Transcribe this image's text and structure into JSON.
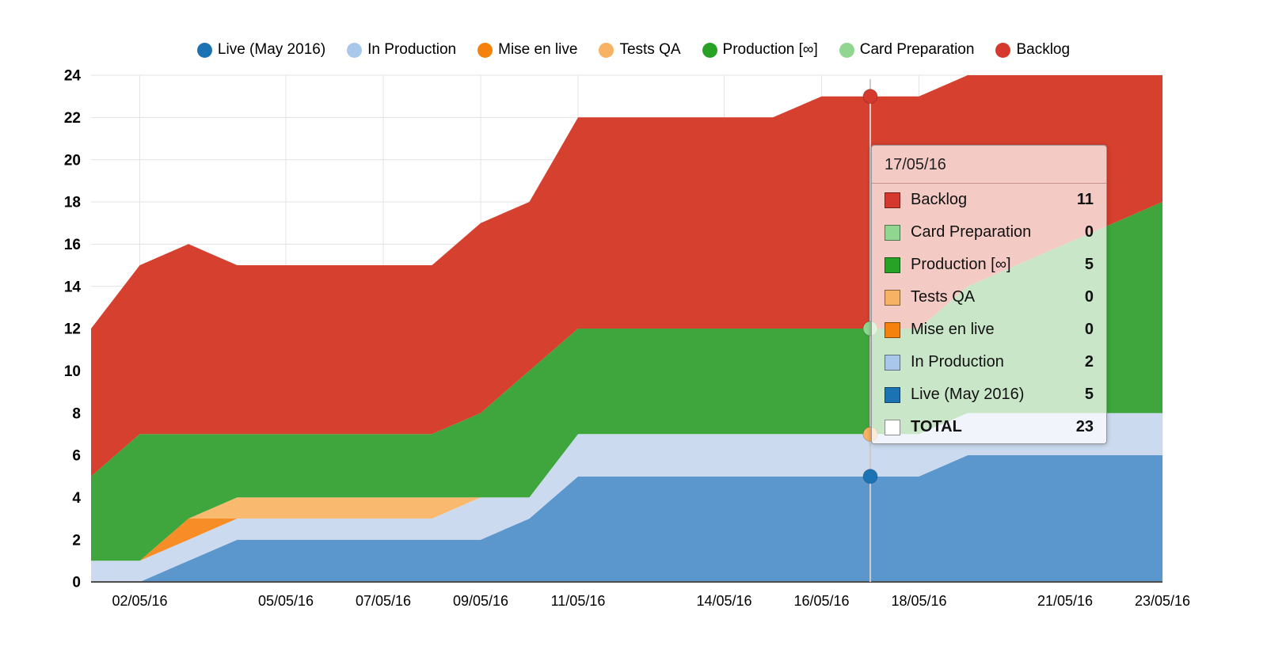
{
  "chart_data": {
    "type": "area",
    "stacked": true,
    "title": "",
    "xlabel": "",
    "ylabel": "",
    "ylim": [
      0,
      24
    ],
    "y_ticks": [
      0,
      2,
      4,
      6,
      8,
      10,
      12,
      14,
      16,
      18,
      20,
      22,
      24
    ],
    "grid": true,
    "legend_position": "top",
    "x": [
      "01/05/16",
      "02/05/16",
      "03/05/16",
      "04/05/16",
      "05/05/16",
      "06/05/16",
      "07/05/16",
      "08/05/16",
      "09/05/16",
      "10/05/16",
      "11/05/16",
      "12/05/16",
      "13/05/16",
      "14/05/16",
      "15/05/16",
      "16/05/16",
      "17/05/16",
      "18/05/16",
      "19/05/16",
      "20/05/16",
      "21/05/16",
      "22/05/16",
      "23/05/16"
    ],
    "x_tick_labels": [
      "02/05/16",
      "05/05/16",
      "07/05/16",
      "09/05/16",
      "11/05/16",
      "14/05/16",
      "16/05/16",
      "18/05/16",
      "21/05/16",
      "23/05/16"
    ],
    "series": [
      {
        "name": "Live (May 2016)",
        "color": "#1b73b3",
        "area_color": "#5b97cd",
        "values": [
          0,
          0,
          1,
          2,
          2,
          2,
          2,
          2,
          2,
          3,
          5,
          5,
          5,
          5,
          5,
          5,
          5,
          5,
          6,
          6,
          6,
          6,
          6
        ]
      },
      {
        "name": "In Production",
        "color": "#a9c7e9",
        "area_color": "#ccdaf0",
        "values": [
          1,
          1,
          1,
          1,
          1,
          1,
          1,
          1,
          2,
          1,
          2,
          2,
          2,
          2,
          2,
          2,
          2,
          2,
          2,
          2,
          2,
          2,
          2
        ]
      },
      {
        "name": "Mise en live",
        "color": "#f5820d",
        "area_color": "#f68d26",
        "values": [
          0,
          0,
          1,
          0,
          0,
          0,
          0,
          0,
          0,
          0,
          0,
          0,
          0,
          0,
          0,
          0,
          0,
          0,
          0,
          0,
          0,
          0,
          0
        ]
      },
      {
        "name": "Tests QA",
        "color": "#f8b264",
        "area_color": "#f9ba70",
        "values": [
          0,
          0,
          0,
          1,
          1,
          1,
          1,
          1,
          0,
          0,
          0,
          0,
          0,
          0,
          0,
          0,
          0,
          0,
          0,
          0,
          0,
          0,
          0
        ]
      },
      {
        "name": "Production [∞]",
        "color": "#27a227",
        "area_color": "#3fa63d",
        "values": [
          4,
          6,
          4,
          3,
          3,
          3,
          3,
          3,
          4,
          6,
          5,
          5,
          5,
          5,
          5,
          5,
          5,
          5,
          6,
          7,
          8,
          9,
          10
        ]
      },
      {
        "name": "Card Preparation",
        "color": "#90d690",
        "area_color": "#9fd89b",
        "values": [
          0,
          0,
          0,
          0,
          0,
          0,
          0,
          0,
          0,
          0,
          0,
          0,
          0,
          0,
          0,
          0,
          0,
          0,
          0,
          0,
          0,
          0,
          0
        ]
      },
      {
        "name": "Backlog",
        "color": "#d5392d",
        "area_color": "#d6402f",
        "values": [
          7,
          8,
          9,
          8,
          8,
          8,
          8,
          8,
          9,
          8,
          10,
          10,
          10,
          10,
          10,
          11,
          11,
          11,
          10,
          9,
          8,
          7,
          6
        ]
      }
    ]
  },
  "hover": {
    "x_label": "17/05/16",
    "x_index": 16,
    "line_color": "#cbcbcb",
    "markers": [
      {
        "series": "Backlog",
        "value": 23
      },
      {
        "series": "Card Preparation",
        "value": 12
      },
      {
        "series": "Tests QA",
        "value": 7
      },
      {
        "series": "Live (May 2016)",
        "value": 5
      }
    ]
  },
  "tooltip": {
    "date": "17/05/16",
    "rows": [
      {
        "label": "Backlog",
        "value": "11",
        "color": "#d5392d",
        "total": false
      },
      {
        "label": "Card Preparation",
        "value": "0",
        "color": "#90d690",
        "total": false
      },
      {
        "label": "Production [∞]",
        "value": "5",
        "color": "#27a227",
        "total": false
      },
      {
        "label": "Tests QA",
        "value": "0",
        "color": "#f8b264",
        "total": false
      },
      {
        "label": "Mise en live",
        "value": "0",
        "color": "#f5820d",
        "total": false
      },
      {
        "label": "In Production",
        "value": "2",
        "color": "#a9c7e9",
        "total": false
      },
      {
        "label": "Live (May 2016)",
        "value": "5",
        "color": "#1b73b3",
        "total": false
      },
      {
        "label": "TOTAL",
        "value": "23",
        "color": "#ffffff",
        "total": true
      }
    ]
  }
}
